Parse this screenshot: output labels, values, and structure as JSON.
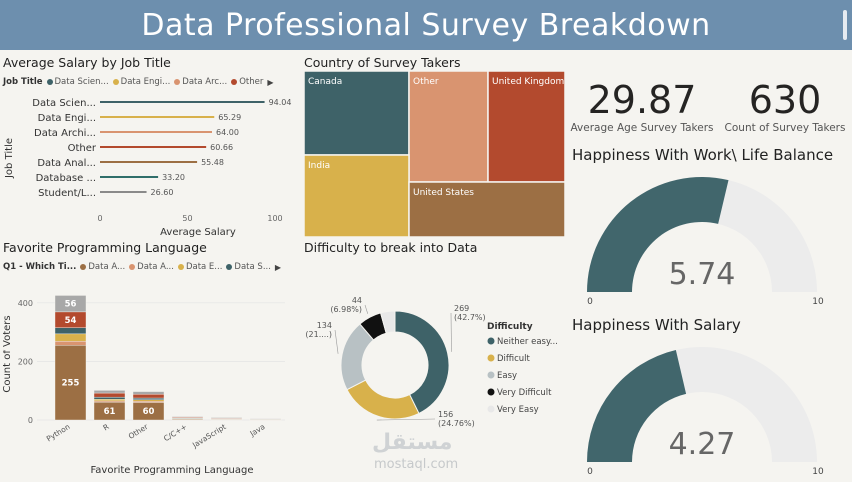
{
  "header": {
    "title": "Data Professional Survey Breakdown"
  },
  "salary_chart": {
    "title": "Average Salary by Job Title",
    "legend_title": "Job Title",
    "legend_items": [
      {
        "label": "Data Scien...",
        "color": "#3e6268"
      },
      {
        "label": "Data Engi...",
        "color": "#d8b14b"
      },
      {
        "label": "Data Arc...",
        "color": "#d99470"
      },
      {
        "label": "Other",
        "color": "#b34a2e"
      }
    ]
  },
  "country_chart": {
    "title": "Country of Survey Takers"
  },
  "language_chart": {
    "title": "Favorite Programming Language",
    "legend_title": "Q1 - Which Ti...",
    "legend_items": [
      {
        "label": "Data A...",
        "color": "#9c6f44"
      },
      {
        "label": "Data A...",
        "color": "#d99470"
      },
      {
        "label": "Data E...",
        "color": "#d8b14b"
      },
      {
        "label": "Data S...",
        "color": "#3e6268"
      }
    ]
  },
  "difficulty_chart": {
    "title": "Difficulty to break into Data"
  },
  "kpis": {
    "avg_age": {
      "value": "29.87",
      "label": "Average Age Survey Takers"
    },
    "count": {
      "value": "630",
      "label": "Count of Survey Takers"
    }
  },
  "gauges": [
    {
      "title": "Happiness With Work\\ Life Balance",
      "value": 5.74,
      "display": "5.74",
      "min": "0",
      "max": "10"
    },
    {
      "title": "Happiness With Salary",
      "value": 4.27,
      "display": "4.27",
      "min": "0",
      "max": "10"
    }
  ],
  "watermark": {
    "arabic": "مستقل",
    "latin": "mostaql.com"
  },
  "chart_data": [
    {
      "type": "bar",
      "orientation": "horizontal",
      "title": "Average Salary by Job Title",
      "xlabel": "Average Salary",
      "ylabel": "Job Title",
      "categories": [
        "Data Scien...",
        "Data Engi...",
        "Data Archi...",
        "Other",
        "Data Anal...",
        "Database ...",
        "Student/L..."
      ],
      "values": [
        94.04,
        65.29,
        64.0,
        60.66,
        55.48,
        33.2,
        26.6
      ],
      "value_labels": [
        "94.04",
        "65.29",
        "64.00",
        "60.66",
        "55.48",
        "33.20",
        "26.60"
      ],
      "colors": [
        "#3e6268",
        "#d8b14b",
        "#d99470",
        "#b34a2e",
        "#9c6f44",
        "#2f6e6a",
        "#8a8a8a"
      ],
      "xticks": [
        "0",
        "50",
        "100"
      ],
      "xlim": [
        0,
        100
      ]
    },
    {
      "type": "treemap",
      "title": "Country of Survey Takers",
      "items": [
        {
          "label": "Canada",
          "color": "#3e6268"
        },
        {
          "label": "Other",
          "color": "#d99470"
        },
        {
          "label": "United Kingdom",
          "color": "#b34a2e"
        },
        {
          "label": "India",
          "color": "#d8b14b"
        },
        {
          "label": "United States",
          "color": "#9c6f44"
        }
      ]
    },
    {
      "type": "bar",
      "stacked": true,
      "title": "Favorite Programming Language",
      "xlabel": "Favorite Programming Language",
      "ylabel": "Count of Voters",
      "categories": [
        "Python",
        "R",
        "Other",
        "C/C++",
        "JavaScript",
        "Java"
      ],
      "series": [
        {
          "color": "#9c6f44",
          "values": [
            255,
            61,
            60,
            3,
            2,
            1
          ]
        },
        {
          "color": "#d99470",
          "values": [
            14,
            4,
            4,
            1,
            1,
            0
          ]
        },
        {
          "color": "#d8b14b",
          "values": [
            25,
            6,
            5,
            1,
            1,
            1
          ]
        },
        {
          "color": "#3e6268",
          "values": [
            21,
            7,
            6,
            2,
            1,
            1
          ]
        },
        {
          "color": "#b34a2e",
          "values": [
            54,
            14,
            13,
            3,
            2,
            1
          ]
        },
        {
          "color": "#a8a8a8",
          "values": [
            56,
            9,
            9,
            2,
            2,
            1
          ]
        }
      ],
      "data_labels": {
        "Python": [
          "255",
          "54",
          "56"
        ],
        "R": [
          "61"
        ],
        "Other": [
          "60"
        ]
      },
      "yticks": [
        "0",
        "200",
        "400"
      ],
      "ylim": [
        0,
        430
      ]
    },
    {
      "type": "pie",
      "donut": true,
      "title": "Difficulty to break into Data",
      "legend_title": "Difficulty",
      "slices": [
        {
          "label": "Neither easy...",
          "value": 269,
          "pct": "(42.7%)",
          "color": "#3e6268"
        },
        {
          "label": "Difficult",
          "value": 156,
          "pct": "(24.76%)",
          "color": "#d8b14b"
        },
        {
          "label": "Easy",
          "value": 134,
          "pct": "(21....)",
          "color": "#b8c1c4"
        },
        {
          "label": "Very Difficult",
          "value": 44,
          "pct": "(6.98%)",
          "color": "#111111"
        },
        {
          "label": "Very Easy",
          "value": 27,
          "pct": "",
          "color": "#e8e8e8"
        }
      ]
    }
  ]
}
